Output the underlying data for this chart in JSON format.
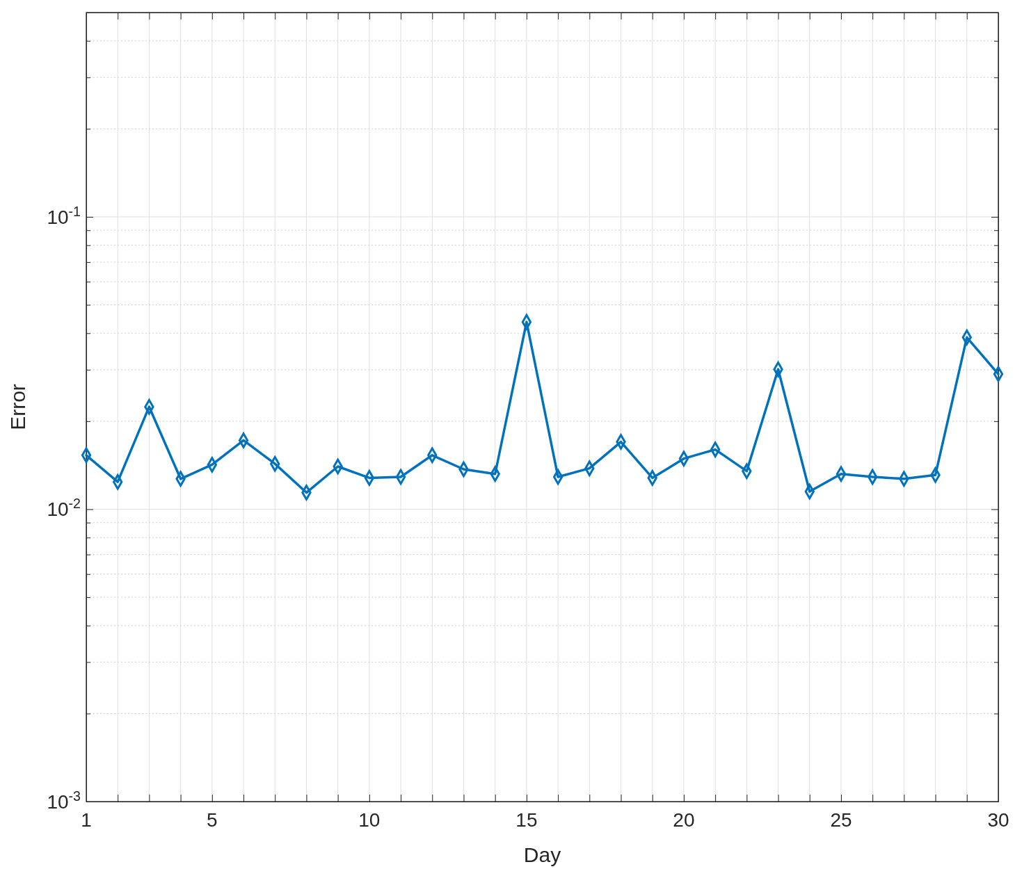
{
  "chart_data": {
    "type": "line",
    "xlabel": "Day",
    "ylabel": "Error",
    "x": [
      1,
      2,
      3,
      4,
      5,
      6,
      7,
      8,
      9,
      10,
      11,
      12,
      13,
      14,
      15,
      16,
      17,
      18,
      19,
      20,
      21,
      22,
      23,
      24,
      25,
      26,
      27,
      28,
      29,
      30
    ],
    "series": [
      {
        "color": "#0072bd",
        "values": [
          0.0153,
          0.0124,
          0.0224,
          0.0127,
          0.0142,
          0.0172,
          0.0143,
          0.0114,
          0.014,
          0.0128,
          0.0129,
          0.0153,
          0.0137,
          0.0132,
          0.0437,
          0.0129,
          0.0138,
          0.017,
          0.0128,
          0.0149,
          0.016,
          0.0135,
          0.0301,
          0.0115,
          0.0132,
          0.0129,
          0.0127,
          0.0131,
          0.0387,
          0.029
        ]
      }
    ],
    "xlim": [
      1,
      30
    ],
    "xticks": [
      1,
      {
        "value": 2,
        "label": null
      },
      {
        "value": 3,
        "label": null
      },
      {
        "value": 4,
        "label": null
      },
      5,
      {
        "value": 6,
        "label": null
      },
      {
        "value": 7,
        "label": null
      },
      {
        "value": 8,
        "label": null
      },
      {
        "value": 9,
        "label": null
      },
      10,
      {
        "value": 11,
        "label": null
      },
      {
        "value": 12,
        "label": null
      },
      {
        "value": 13,
        "label": null
      },
      {
        "value": 14,
        "label": null
      },
      15,
      {
        "value": 16,
        "label": null
      },
      {
        "value": 17,
        "label": null
      },
      {
        "value": 18,
        "label": null
      },
      {
        "value": 19,
        "label": null
      },
      20,
      {
        "value": 21,
        "label": null
      },
      {
        "value": 22,
        "label": null
      },
      {
        "value": 23,
        "label": null
      },
      {
        "value": 24,
        "label": null
      },
      25,
      {
        "value": 26,
        "label": null
      },
      {
        "value": 27,
        "label": null
      },
      {
        "value": 28,
        "label": null
      },
      {
        "value": 29,
        "label": null
      },
      30
    ],
    "ylim": [
      0.001,
      0.5
    ],
    "yticks": [
      {
        "value": 0.001,
        "label": "10$^{-3}$"
      },
      {
        "value": 0.002,
        "label": null
      },
      {
        "value": 0.003,
        "label": null
      },
      {
        "value": 0.004,
        "label": null
      },
      {
        "value": 0.005,
        "label": null
      },
      {
        "value": 0.006,
        "label": null
      },
      {
        "value": 0.007,
        "label": null
      },
      {
        "value": 0.008,
        "label": null
      },
      {
        "value": 0.009,
        "label": null
      },
      {
        "value": 0.01,
        "label": "10$^{-2}$"
      },
      {
        "value": 0.02,
        "label": null
      },
      {
        "value": 0.03,
        "label": null
      },
      {
        "value": 0.04,
        "label": null
      },
      {
        "value": 0.05,
        "label": null
      },
      {
        "value": 0.06,
        "label": null
      },
      {
        "value": 0.07,
        "label": null
      },
      {
        "value": 0.08,
        "label": null
      },
      {
        "value": 0.09,
        "label": null
      },
      {
        "value": 0.1,
        "label": "10$^{-1}$"
      },
      {
        "value": 0.2,
        "label": null
      },
      {
        "value": 0.3,
        "label": null
      },
      {
        "value": 0.4,
        "label": null
      },
      {
        "value": 0.5,
        "label": null
      }
    ],
    "log": "y",
    "grid": true,
    "marker": "diamond",
    "line_style": "solid"
  }
}
